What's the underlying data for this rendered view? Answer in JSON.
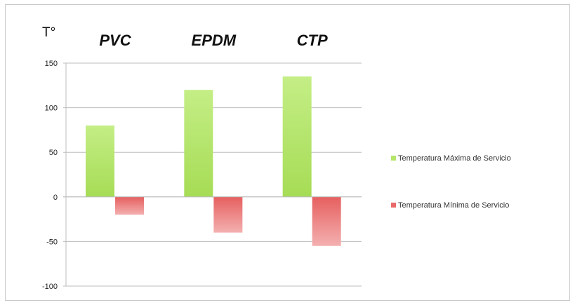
{
  "chart_data": {
    "type": "bar",
    "ylabel": "T°",
    "categories": [
      "PVC",
      "EPDM",
      "CTP"
    ],
    "series": [
      {
        "name": "Temperatura Máxima de Servicio",
        "values": [
          80,
          120,
          135
        ],
        "color": "#b5e66a"
      },
      {
        "name": "Temperatura Mínima de Servicio",
        "values": [
          -20,
          -40,
          -55
        ],
        "color": "#e86a6a"
      }
    ],
    "ylim": [
      -100,
      150
    ],
    "yticks": [
      150,
      100,
      50,
      0,
      -50,
      -100
    ],
    "grid": true,
    "legend_position": "right"
  }
}
